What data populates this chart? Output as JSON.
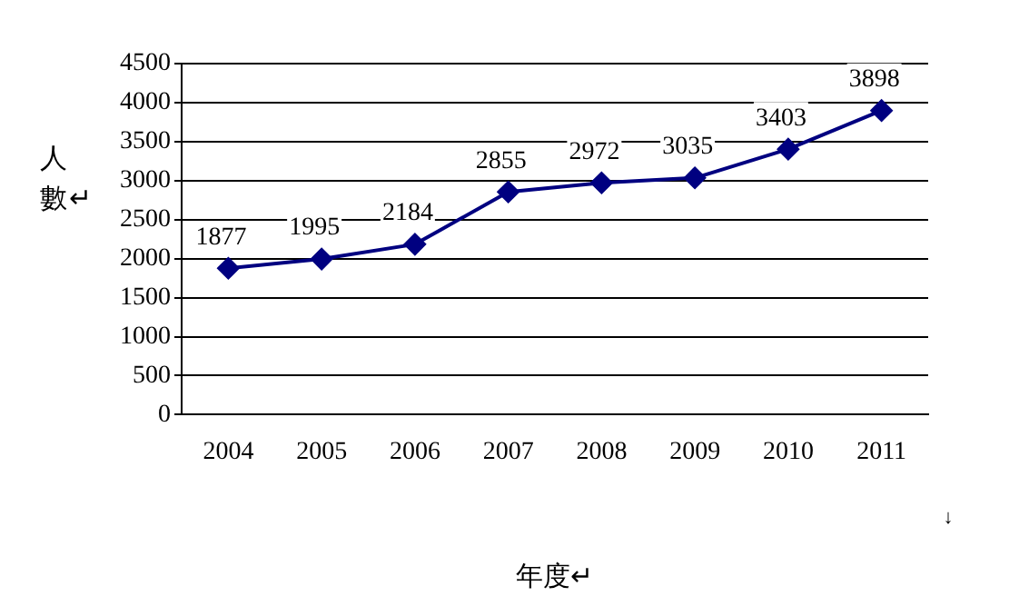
{
  "chart_data": {
    "type": "line",
    "xlabel": "年度↵",
    "ylabel": "人數↵",
    "categories": [
      "2004",
      "2005",
      "2006",
      "2007",
      "2008",
      "2009",
      "2010",
      "2011"
    ],
    "series": [
      {
        "color": "#000080",
        "values": [
          1877,
          1995,
          2184,
          2855,
          2972,
          3035,
          3403,
          3898
        ]
      }
    ],
    "ylim": [
      0,
      4500
    ],
    "yticks": [
      0,
      500,
      1000,
      1500,
      2000,
      2500,
      3000,
      3500,
      4000,
      4500
    ],
    "grid": "y",
    "legend": false,
    "marker": "diamond",
    "line_style": "solid",
    "data_labels": true,
    "annotations": [
      "↓"
    ]
  }
}
